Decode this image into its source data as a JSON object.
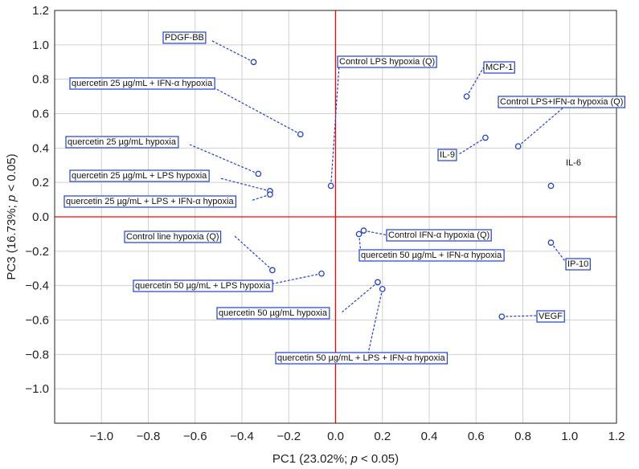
{
  "chart_data": {
    "type": "scatter",
    "xlabel_parts": [
      "PC1 (23.02%; ",
      "p",
      " < 0.05)"
    ],
    "ylabel_parts": [
      "PC3 (16.73%; ",
      "p",
      " < 0.05)"
    ],
    "xlim": [
      -1.2,
      1.2
    ],
    "ylim": [
      -1.2,
      1.2
    ],
    "xticks": [
      -1.0,
      -0.8,
      -0.6,
      -0.4,
      -0.2,
      0.0,
      0.2,
      0.4,
      0.6,
      0.8,
      1.0,
      1.2
    ],
    "yticks": [
      -1.0,
      -0.8,
      -0.6,
      -0.4,
      -0.2,
      0.0,
      0.2,
      0.4,
      0.6,
      0.8,
      1.0,
      1.2
    ],
    "xtick_labels": [
      "−1.0",
      "−0.8",
      "−0.6",
      "−0.4",
      "−0.2",
      "0.0",
      "0.2",
      "0.4",
      "0.6",
      "0.8",
      "1.0",
      "1.2"
    ],
    "ytick_labels": [
      "−1.0",
      "−0.8",
      "−0.6",
      "−0.4",
      "−0.2",
      "0.0",
      "0.2",
      "0.4",
      "0.6",
      "0.8",
      "1.0",
      "1.2"
    ],
    "grid": true,
    "reference_lines": {
      "x": 0,
      "y": 0,
      "color": "#ff0000"
    },
    "colors": {
      "points": "#1f3fd6",
      "label_border": "#1f3fd6",
      "grid": "#d0d0d0"
    },
    "points": [
      {
        "label": "PDGF-BB",
        "x": -0.35,
        "y": 0.9,
        "boxed": true
      },
      {
        "label": "quercetin 25 µg/mL + IFN-α hypoxia",
        "x": -0.15,
        "y": 0.48,
        "boxed": true
      },
      {
        "label": "quercetin 25 µg/mL hypoxia",
        "x": -0.33,
        "y": 0.25,
        "boxed": true
      },
      {
        "label": "quercetin 25 µg/mL + LPS hypoxia",
        "x": -0.28,
        "y": 0.15,
        "boxed": true
      },
      {
        "label": "quercetin 25 µg/mL + LPS + IFN-α hypoxia",
        "x": -0.28,
        "y": 0.13,
        "boxed": true
      },
      {
        "label": "Control LPS hypoxia (Q)",
        "x": -0.02,
        "y": 0.18,
        "boxed": true
      },
      {
        "label": "MCP-1",
        "x": 0.56,
        "y": 0.7,
        "boxed": true
      },
      {
        "label": "Control LPS+IFN-α hypoxia (Q)",
        "x": 0.78,
        "y": 0.41,
        "boxed": true
      },
      {
        "label": "IL-9",
        "x": 0.64,
        "y": 0.46,
        "boxed": true
      },
      {
        "label": "IL-6",
        "x": 0.92,
        "y": 0.18,
        "boxed": false
      },
      {
        "label": "Control line hypoxia (Q)",
        "x": -0.27,
        "y": -0.31,
        "boxed": true
      },
      {
        "label": "quercetin 50 µg/mL + LPS hypoxia",
        "x": -0.06,
        "y": -0.33,
        "boxed": true
      },
      {
        "label": "quercetin 50 µg/mL hypoxia",
        "x": 0.18,
        "y": -0.38,
        "boxed": true
      },
      {
        "label": "quercetin 50 µg/mL + LPS + IFN-α hypoxia",
        "x": 0.2,
        "y": -0.42,
        "boxed": true
      },
      {
        "label": "Control IFN-α hypoxia (Q)",
        "x": 0.12,
        "y": -0.08,
        "boxed": true
      },
      {
        "label": "quercetin 50 µg/mL + IFN-α hypoxia",
        "x": 0.1,
        "y": -0.1,
        "boxed": true
      },
      {
        "label": "IP-10",
        "x": 0.92,
        "y": -0.15,
        "boxed": true
      },
      {
        "label": "VEGF",
        "x": 0.71,
        "y": -0.58,
        "boxed": true
      }
    ]
  }
}
